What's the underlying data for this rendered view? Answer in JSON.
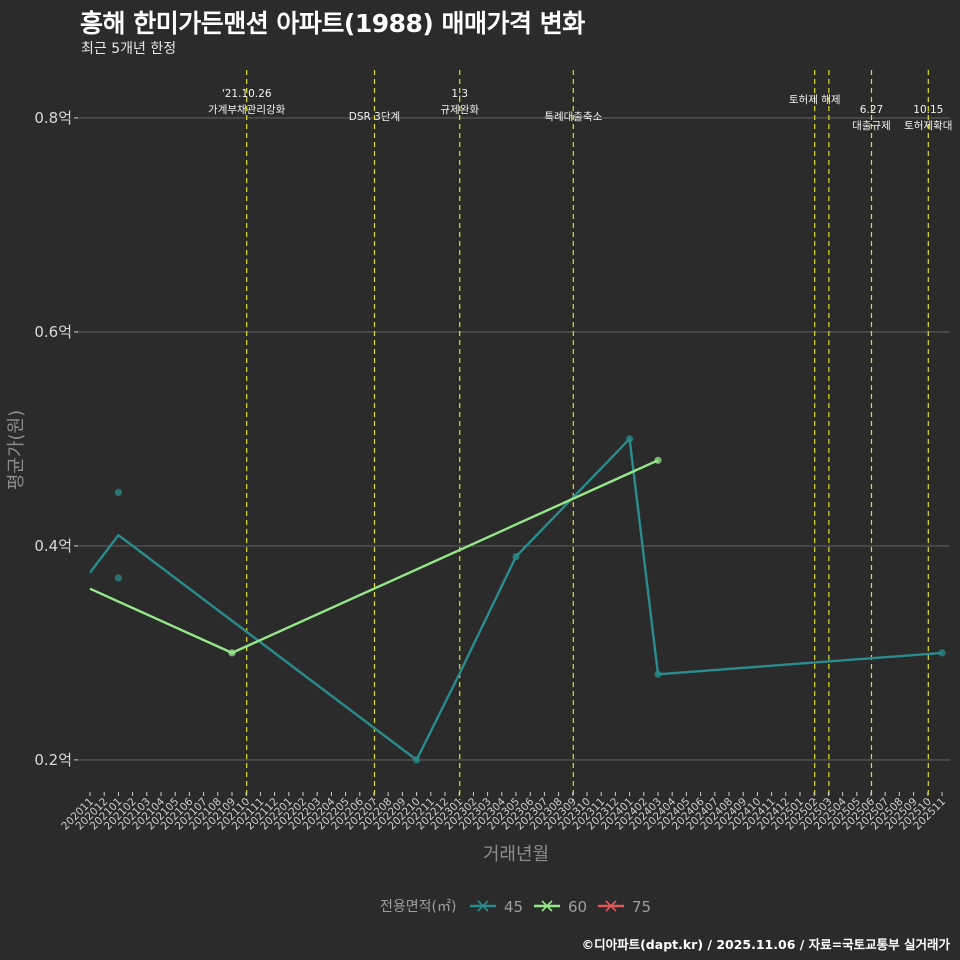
{
  "title": "흥해 한미가든맨션 아파트(1988) 매매가격 변화",
  "subtitle": "최근 5개년 한정",
  "caption": "©디아파트(dapt.kr) / 2025.11.06 / 자료=국토교통부 실거래가",
  "chart_data": {
    "type": "line",
    "title": "흥해 한미가든맨션 아파트(1988) 매매가격 변화",
    "xlabel": "거래년월",
    "ylabel": "평균가(원)",
    "ylim": [
      0.17,
      0.87
    ],
    "yticks": [
      0.2,
      0.4,
      0.6,
      0.8
    ],
    "ytick_labels": [
      "0.2억",
      "0.4억",
      "0.6억",
      "0.8억"
    ],
    "categories": [
      "202011",
      "202012",
      "202101",
      "202102",
      "202103",
      "202104",
      "202105",
      "202106",
      "202107",
      "202108",
      "202109",
      "202110",
      "202111",
      "202112",
      "202201",
      "202202",
      "202203",
      "202204",
      "202205",
      "202206",
      "202207",
      "202208",
      "202209",
      "202210",
      "202211",
      "202212",
      "202301",
      "202302",
      "202303",
      "202304",
      "202305",
      "202306",
      "202307",
      "202308",
      "202309",
      "202310",
      "202311",
      "202312",
      "202401",
      "202402",
      "202403",
      "202404",
      "202405",
      "202406",
      "202407",
      "202408",
      "202409",
      "202410",
      "202411",
      "202412",
      "202501",
      "202502",
      "202503",
      "202504",
      "202505",
      "202506",
      "202507",
      "202508",
      "202509",
      "202510",
      "202511"
    ],
    "legend_title": "전용면적(㎡)",
    "series": [
      {
        "name": "45",
        "color": "#2a8c8c",
        "line": [
          [
            "202011",
            0.375
          ],
          [
            "202101",
            0.41
          ],
          [
            "202210",
            0.2
          ],
          [
            "202301",
            0.28
          ],
          [
            "202305",
            0.39
          ],
          [
            "202401",
            0.5
          ],
          [
            "202403",
            0.28
          ],
          [
            "202511",
            0.3
          ]
        ],
        "points": [
          [
            "202101",
            0.45
          ],
          [
            "202101",
            0.37
          ],
          [
            "202210",
            0.2
          ],
          [
            "202305",
            0.39
          ],
          [
            "202401",
            0.5
          ],
          [
            "202403",
            0.28
          ],
          [
            "202511",
            0.3
          ]
        ]
      },
      {
        "name": "60",
        "color": "#96e68a",
        "line": [
          [
            "202011",
            0.36
          ],
          [
            "202109",
            0.3
          ],
          [
            "202403",
            0.48
          ]
        ],
        "points": [
          [
            "202109",
            0.3
          ],
          [
            "202403",
            0.48
          ]
        ]
      },
      {
        "name": "75",
        "color": "#e05a5a",
        "line": [],
        "points": []
      }
    ],
    "annotations": [
      {
        "month": "202110",
        "lines": [
          "'21.10.26",
          "가계부채관리강화"
        ]
      },
      {
        "month": "202207",
        "lines": [
          "DSR 3단계"
        ]
      },
      {
        "month": "202301",
        "lines": [
          "1.3",
          "규제완화"
        ]
      },
      {
        "month": "202309",
        "lines": [
          "특례대출축소"
        ]
      },
      {
        "month": "202502",
        "lines": [
          "토허제 해제"
        ]
      },
      {
        "month": "202503",
        "lines": []
      },
      {
        "month": "202506",
        "lines": [
          "6.27",
          "대출규제"
        ]
      },
      {
        "month": "202510",
        "lines": [
          "10.15",
          "토허제확대"
        ]
      }
    ]
  }
}
